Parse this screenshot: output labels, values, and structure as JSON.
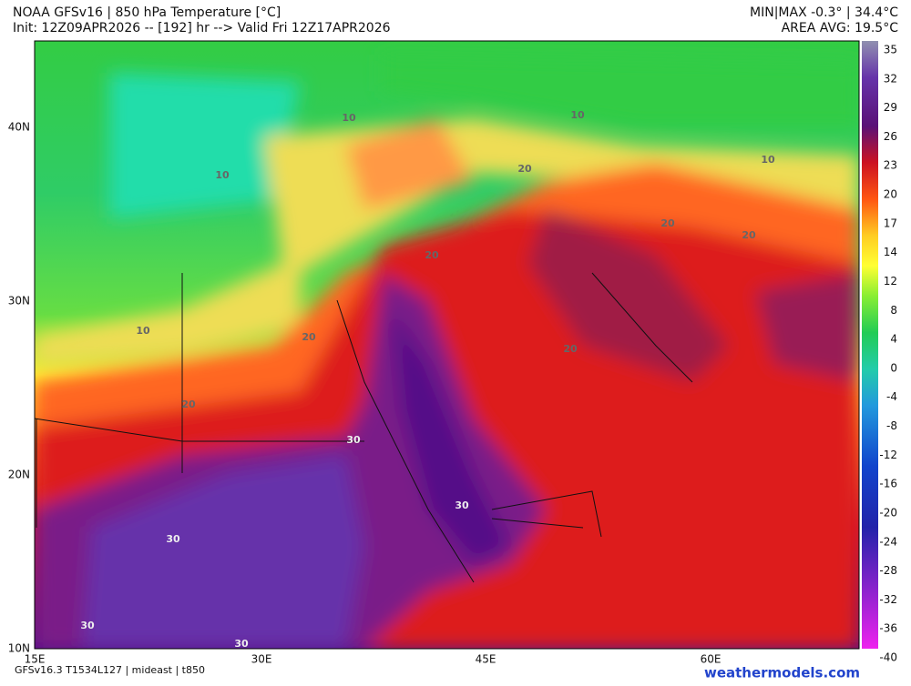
{
  "header": {
    "title": "NOAA GFSv16 | 850 hPa Temperature [°C]",
    "subtitle": "Init: 12Z09APR2026 -- [192] hr --> Valid Fri 12Z17APR2026",
    "minmax": "MIN|MAX -0.3° | 34.4°C",
    "area_avg": "AREA AVG: 19.5°C"
  },
  "map": {
    "lat_labels": [
      "40N",
      "30N",
      "20N",
      "10N"
    ],
    "lon_labels": [
      "15E",
      "30E",
      "45E",
      "60E"
    ],
    "contour_labels": [
      "10",
      "10",
      "10",
      "10",
      "10",
      "20",
      "20",
      "20",
      "20",
      "20",
      "20",
      "20",
      "30",
      "30",
      "30",
      "30",
      "30"
    ]
  },
  "colorbar": {
    "labels": [
      "35",
      "32",
      "29",
      "26",
      "23",
      "20",
      "17",
      "14",
      "12",
      "8",
      "4",
      "0",
      "-4",
      "-8",
      "-12",
      "-16",
      "-20",
      "-24",
      "-28",
      "-32",
      "-36",
      "-40"
    ]
  },
  "footer": {
    "model": "GFSv16.3 T1534L127 | mideast | t850",
    "brand": "weathermodels.com"
  }
}
